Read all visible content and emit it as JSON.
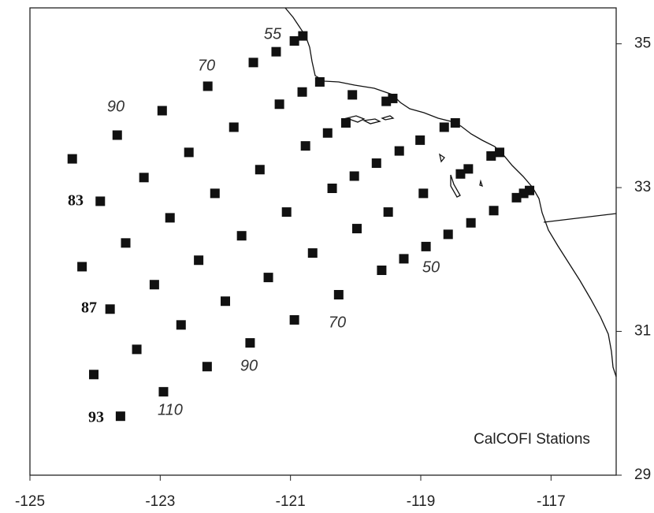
{
  "chart_data": {
    "type": "scatter",
    "x": [
      -120.81,
      -120.94,
      -121.22,
      -121.57,
      -122.27,
      -122.97,
      -123.66,
      -124.35,
      -120.55,
      -120.82,
      -121.17,
      -121.87,
      -122.56,
      -123.25,
      -123.92,
      -120.05,
      -119.53,
      -119.43,
      -120.15,
      -120.43,
      -120.77,
      -121.47,
      -122.16,
      -122.85,
      -123.53,
      -124.2,
      -118.47,
      -118.64,
      -119.01,
      -119.33,
      -119.68,
      -120.02,
      -120.36,
      -121.06,
      -121.75,
      -122.41,
      -123.09,
      -123.77,
      -117.79,
      -117.92,
      -118.27,
      -118.39,
      -118.96,
      -119.5,
      -119.98,
      -120.66,
      -121.34,
      -122.0,
      -122.68,
      -123.36,
      -124.02,
      -117.33,
      -117.42,
      -117.53,
      -117.88,
      -118.23,
      -118.58,
      -118.92,
      -119.26,
      -119.6,
      -120.26,
      -120.94,
      -121.62,
      -122.28,
      -122.95,
      -123.61
    ],
    "values": [
      35.11,
      35.04,
      34.89,
      34.74,
      34.41,
      34.07,
      33.73,
      33.4,
      34.47,
      34.33,
      34.16,
      33.84,
      33.49,
      33.14,
      32.81,
      34.29,
      34.2,
      34.24,
      33.9,
      33.76,
      33.58,
      33.25,
      32.92,
      32.58,
      32.23,
      31.9,
      33.9,
      33.84,
      33.66,
      33.51,
      33.34,
      33.16,
      32.99,
      32.66,
      32.33,
      31.99,
      31.65,
      31.31,
      33.49,
      33.44,
      33.26,
      33.19,
      32.92,
      32.66,
      32.43,
      32.09,
      31.75,
      31.42,
      31.09,
      30.75,
      30.4,
      32.96,
      32.92,
      32.86,
      32.68,
      32.51,
      32.35,
      32.18,
      32.01,
      31.85,
      31.51,
      31.16,
      30.84,
      30.51,
      30.16,
      29.82
    ],
    "color": "#111111",
    "xlim": [
      -125,
      -116
    ],
    "ylim": [
      29,
      35.5
    ],
    "xticks": [
      -125,
      -123,
      -121,
      -119,
      -117
    ],
    "yticks": [
      29,
      31,
      33,
      35
    ],
    "annotations": [
      "55",
      "70",
      "90",
      "83",
      "87",
      "93",
      "50",
      "70",
      "90",
      "110",
      "CalCOFI Stations"
    ]
  }
}
